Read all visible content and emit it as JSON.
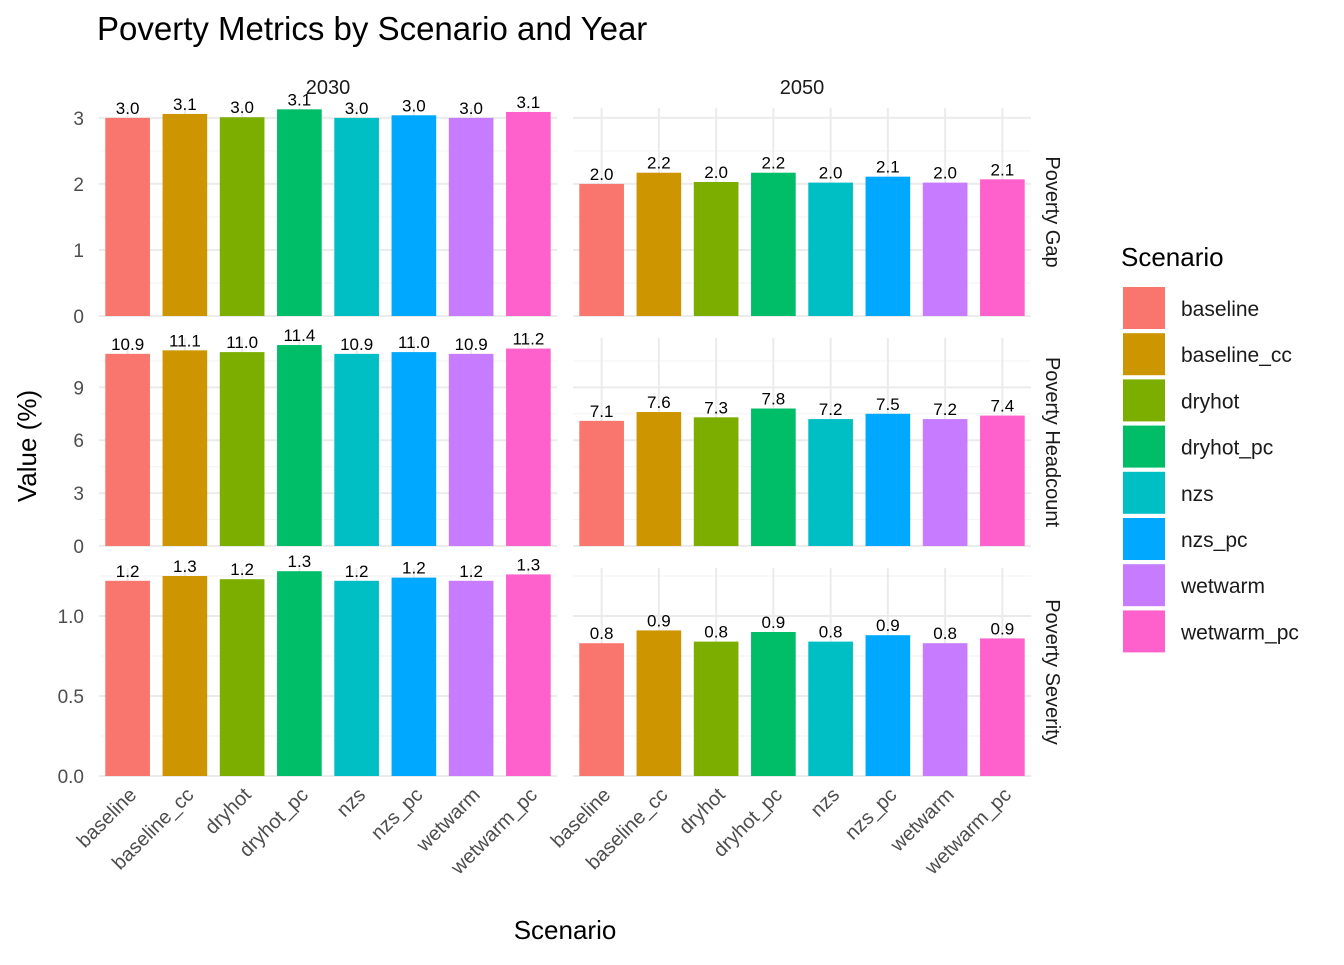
{
  "chart_data": {
    "type": "bar",
    "title": "Poverty Metrics by Scenario and Year",
    "xlabel": "Scenario",
    "ylabel": "Value (%)",
    "legend": {
      "title": "Scenario",
      "placement": "right"
    },
    "categories": [
      "baseline",
      "baseline_cc",
      "dryhot",
      "dryhot_pc",
      "nzs",
      "nzs_pc",
      "wetwarm",
      "wetwarm_pc"
    ],
    "colors": [
      "#F8766D",
      "#CD9600",
      "#7CAE00",
      "#00BE67",
      "#00BFC4",
      "#00A9FF",
      "#C77CFF",
      "#FF61CC"
    ],
    "grid": true,
    "facet_columns": [
      "2030",
      "2050"
    ],
    "facet_rows": [
      {
        "label": "Poverty Gap",
        "ylim": [
          0,
          3.15
        ],
        "ticks": [
          "0",
          "1",
          "2",
          "3"
        ],
        "tick_values": [
          0,
          1,
          2,
          3
        ],
        "values": {
          "2030": [
            3.0,
            3.06,
            3.01,
            3.13,
            3.0,
            3.04,
            3.0,
            3.09
          ],
          "2050": [
            2.0,
            2.17,
            2.03,
            2.17,
            2.02,
            2.11,
            2.02,
            2.07
          ]
        },
        "labels": {
          "2030": [
            "3.0",
            "3.1",
            "3.0",
            "3.1",
            "3.0",
            "3.0",
            "3.0",
            "3.1"
          ],
          "2050": [
            "2.0",
            "2.2",
            "2.0",
            "2.2",
            "2.0",
            "2.1",
            "2.0",
            "2.1"
          ]
        }
      },
      {
        "label": "Poverty Headcount",
        "ylim": [
          0,
          11.8
        ],
        "ticks": [
          "0",
          "3",
          "6",
          "9"
        ],
        "tick_values": [
          0,
          3,
          6,
          9
        ],
        "values": {
          "2030": [
            10.9,
            11.1,
            11.0,
            11.4,
            10.9,
            11.0,
            10.9,
            11.2
          ],
          "2050": [
            7.1,
            7.6,
            7.3,
            7.8,
            7.2,
            7.5,
            7.2,
            7.4
          ]
        },
        "labels": {
          "2030": [
            "10.9",
            "11.1",
            "11.0",
            "11.4",
            "10.9",
            "11.0",
            "10.9",
            "11.2"
          ],
          "2050": [
            "7.1",
            "7.6",
            "7.3",
            "7.8",
            "7.2",
            "7.5",
            "7.2",
            "7.4"
          ]
        }
      },
      {
        "label": "Poverty Severity",
        "ylim": [
          0,
          1.3
        ],
        "ticks": [
          "0.0",
          "0.5",
          "1.0"
        ],
        "tick_values": [
          0,
          0.5,
          1.0
        ],
        "values": {
          "2030": [
            1.22,
            1.25,
            1.23,
            1.28,
            1.22,
            1.24,
            1.22,
            1.26
          ],
          "2050": [
            0.83,
            0.91,
            0.84,
            0.9,
            0.84,
            0.88,
            0.83,
            0.86
          ]
        },
        "labels": {
          "2030": [
            "1.2",
            "1.3",
            "1.2",
            "1.3",
            "1.2",
            "1.2",
            "1.2",
            "1.3"
          ],
          "2050": [
            "0.8",
            "0.9",
            "0.8",
            "0.9",
            "0.8",
            "0.9",
            "0.8",
            "0.9"
          ]
        }
      }
    ]
  }
}
